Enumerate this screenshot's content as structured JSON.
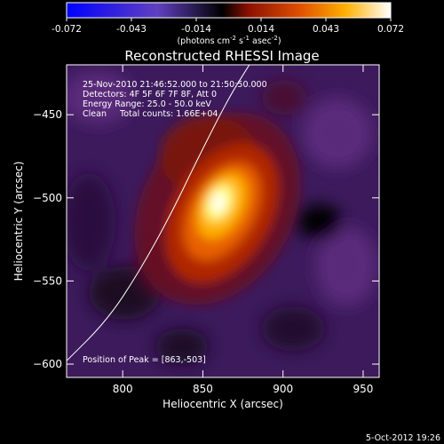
{
  "colorbar": {
    "tick_labels": [
      "-0.072",
      "-0.043",
      "-0.014",
      "0.014",
      "0.043",
      "0.072"
    ],
    "unit_label": "(photons cm",
    "unit_sup1": "-2",
    "unit_mid1": " s",
    "unit_sup2": "-1",
    "unit_mid2": " asec",
    "unit_sup3": "-2",
    "unit_end": ")",
    "colors": [
      "#0000ff",
      "#6040c0",
      "#000000",
      "#8a1000",
      "#e05000",
      "#ffb000",
      "#ffffff"
    ]
  },
  "chart_data": {
    "type": "heatmap",
    "title": "Reconstructed RHESSI Image",
    "xlabel": "Heliocentric X (arcsec)",
    "ylabel": "Heliocentric Y (arcsec)",
    "xlim": [
      765,
      960
    ],
    "ylim": [
      -608,
      -420
    ],
    "x_ticks": [
      800,
      850,
      900,
      950
    ],
    "y_ticks": [
      -450,
      -500,
      -550,
      -600
    ],
    "annotations": [
      "25-Nov-2010 21:46:52.000 to 21:50:50.000",
      "Detectors: 4F 5F 6F 7F 8F, Att 0",
      "Energy Range: 25.0 - 50.0 keV",
      "Clean     Total counts: 1.66E+04"
    ],
    "peak_label": "Position of Peak = [863,-503]",
    "peak": [
      863,
      -503
    ],
    "peak_value": 0.072,
    "limb_curve": [
      [
        765,
        -598
      ],
      [
        790,
        -574
      ],
      [
        810,
        -545
      ],
      [
        830,
        -510
      ],
      [
        846,
        -478
      ],
      [
        866,
        -440
      ],
      [
        879,
        -420
      ]
    ]
  },
  "footer": {
    "date": "5-Oct-2012 19:26"
  }
}
